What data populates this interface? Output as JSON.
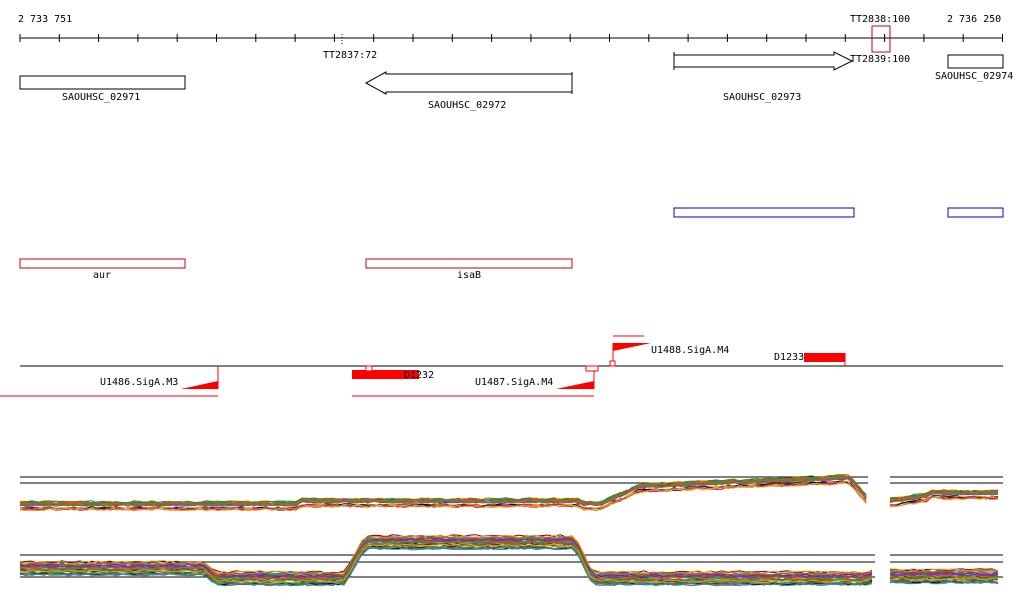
{
  "coords": {
    "start": "2 733 751",
    "end": "2 736 250"
  },
  "terminators": [
    {
      "label": "TT2837:72"
    },
    {
      "label": "TT2838:100"
    },
    {
      "label": "TT2839:100"
    }
  ],
  "genes": [
    {
      "name": "SAOUHSC_02971",
      "strand": "none"
    },
    {
      "name": "SAOUHSC_02972",
      "strand": "minus"
    },
    {
      "name": "SAOUHSC_02973",
      "strand": "plus"
    },
    {
      "name": "SAOUHSC_02974",
      "strand": "none"
    }
  ],
  "operons": [
    {
      "name": ""
    },
    {
      "name": ""
    }
  ],
  "annotations": [
    {
      "name": "aur"
    },
    {
      "name": "isaB"
    }
  ],
  "promoters": [
    {
      "name": "U1486.SigA.M3",
      "strand": "minus"
    },
    {
      "name": "U1487.SigA.M4",
      "strand": "minus"
    },
    {
      "name": "U1488.SigA.M4",
      "strand": "plus"
    }
  ],
  "features": [
    {
      "name": "D1232"
    },
    {
      "name": "D1233"
    }
  ],
  "colors": {
    "gene": "#000000",
    "operon": "#0000cc",
    "annotation": "#cc0000",
    "promoter": "#ff0000",
    "profile": [
      "#000000",
      "#8b0000",
      "#228b22",
      "#1e90ff",
      "#ff8c00",
      "#9400d3",
      "#808000",
      "#008080",
      "#c71585",
      "#a0522d",
      "#2e8b57",
      "#4682b4",
      "#daa520",
      "#6b8e23",
      "#ff4500",
      "#696969"
    ]
  }
}
